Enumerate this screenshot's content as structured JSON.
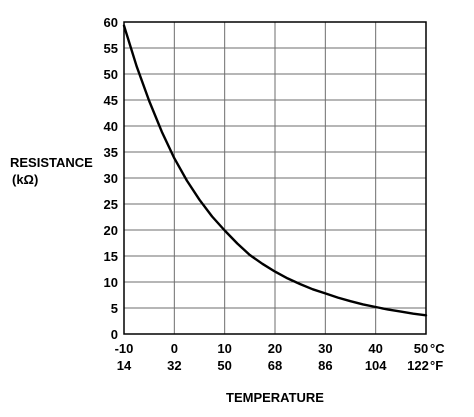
{
  "chart_data": {
    "type": "line",
    "xlabel": "TEMPERATURE",
    "ylabel_line1": "RESISTANCE",
    "ylabel_line2": "(kΩ)",
    "xlim": [
      -10,
      50
    ],
    "ylim": [
      0,
      60
    ],
    "grid": true,
    "x_ticks_c": [
      "-10",
      "0",
      "10",
      "20",
      "30",
      "40",
      "50"
    ],
    "x_ticks_f": [
      "14",
      "32",
      "50",
      "68",
      "86",
      "104",
      "122"
    ],
    "x_unit_c": "°C",
    "x_unit_f": "°F",
    "y_ticks": [
      "0",
      "5",
      "10",
      "15",
      "20",
      "25",
      "30",
      "35",
      "40",
      "45",
      "50",
      "55",
      "60"
    ],
    "series": [
      {
        "color": "#000000",
        "x": [
          -10,
          -7.5,
          -5,
          -2.5,
          0,
          2.5,
          5,
          7.5,
          10,
          12.5,
          15,
          17.5,
          20,
          22.5,
          25,
          27.5,
          30,
          32.5,
          35,
          37.5,
          40,
          42.5,
          45,
          47.5,
          50
        ],
        "y": [
          59.3,
          51.5,
          44.8,
          38.9,
          33.8,
          29.5,
          25.8,
          22.6,
          19.9,
          17.4,
          15.2,
          13.5,
          12.0,
          10.7,
          9.6,
          8.6,
          7.8,
          7.0,
          6.3,
          5.7,
          5.2,
          4.7,
          4.3,
          3.9,
          3.6
        ]
      }
    ]
  }
}
